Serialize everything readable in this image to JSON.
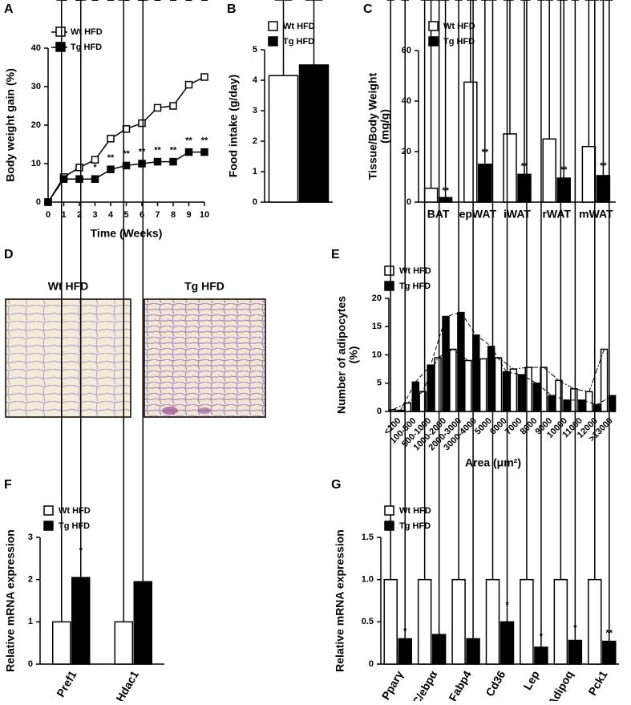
{
  "chart_data": [
    {
      "type": "line",
      "panel": "A",
      "xlabel": "Time (Weeks)",
      "ylabel": [
        "Body weight gain (%)"
      ],
      "x": [
        0,
        1,
        2,
        3,
        4,
        5,
        6,
        7,
        8,
        9,
        10
      ],
      "xlim": [
        0,
        10
      ],
      "xticks": [
        0,
        1,
        2,
        3,
        4,
        5,
        6,
        7,
        8,
        9,
        10
      ],
      "ylim": [
        0,
        40
      ],
      "yticks": [
        0,
        10,
        20,
        30,
        40
      ],
      "series": [
        {
          "name": "Wt HFD",
          "color": "#ffffff",
          "values": [
            0,
            6.5,
            9,
            11,
            16.5,
            19,
            20.5,
            24.5,
            25,
            30.5,
            32.5
          ],
          "errors": [
            0,
            1,
            1,
            1,
            2,
            1.5,
            2,
            3,
            3.5,
            4,
            4
          ]
        },
        {
          "name": "Tg HFD",
          "color": "#000000",
          "values": [
            0,
            6,
            6,
            6,
            8.5,
            9.5,
            10,
            10.5,
            10.5,
            13,
            13
          ],
          "errors": [
            0,
            1.5,
            1.5,
            1.5,
            1.5,
            1.5,
            1.5,
            1.5,
            1.5,
            1.5,
            1.5
          ],
          "significance": [
            null,
            null,
            null,
            "*",
            "**",
            "**",
            "**",
            "**",
            "**",
            "**",
            "**"
          ]
        }
      ]
    },
    {
      "type": "bar",
      "panel": "B",
      "ylabel": [
        "Food intake (g/day)"
      ],
      "categories": [
        null
      ],
      "ylim": [
        0,
        5
      ],
      "yticks": [
        0,
        1,
        2,
        3,
        4,
        5
      ],
      "series": [
        {
          "name": "Wt HFD",
          "color": "#ffffff",
          "values": [
            4.15
          ],
          "errors": [
            0.2
          ]
        },
        {
          "name": "Tg HFD",
          "color": "#000000",
          "values": [
            4.5
          ],
          "errors": [
            0.25
          ]
        }
      ]
    },
    {
      "type": "bar",
      "panel": "C",
      "ylabel": [
        "Tissue/Body Weight",
        "(mg/g)"
      ],
      "categories": [
        "BAT",
        "epWAT",
        "iWAT",
        "rWAT",
        "mWAT"
      ],
      "ylim": [
        0,
        60
      ],
      "yticks": [
        0,
        20,
        40,
        60
      ],
      "series": [
        {
          "name": "Wt HFD",
          "color": "#ffffff",
          "values": [
            5.5,
            47.5,
            27,
            25,
            22
          ],
          "errors": [
            0.7,
            5.5,
            2.5,
            3,
            5
          ]
        },
        {
          "name": "Tg HFD",
          "color": "#000000",
          "values": [
            1.8,
            15,
            11,
            9.5,
            10.5
          ],
          "errors": [
            0.4,
            2.5,
            0.8,
            1,
            1.5
          ],
          "significance": [
            "**",
            "**",
            "**",
            "**",
            "**"
          ]
        }
      ]
    },
    {
      "type": "micrograph",
      "panel": "D",
      "titles": [
        "Wt HFD",
        "Tg HFD"
      ]
    },
    {
      "type": "bar",
      "panel": "E",
      "trend": true,
      "xlabel": "Area (μm²)",
      "ylabel": [
        "Number of adipocytes",
        "(%)"
      ],
      "categories": [
        "<100",
        "100-500",
        "500-1000",
        "1000-2000",
        "2000-3000",
        "3000-4000",
        "5000",
        "6000",
        "7000",
        "8000",
        "9000",
        "10000",
        "11000",
        "12000",
        ">13000"
      ],
      "ylim": [
        0,
        20
      ],
      "yticks": [
        0,
        5,
        10,
        15,
        20
      ],
      "series": [
        {
          "name": "Wt HFD",
          "color": "#ffffff",
          "values": [
            0.3,
            1.5,
            3.5,
            9.5,
            11,
            9,
            9.3,
            9.5,
            7.5,
            7.8,
            7.8,
            5.5,
            4,
            3.5,
            11
          ]
        },
        {
          "name": "Tg HFD",
          "color": "#000000",
          "values": [
            0.2,
            5.2,
            8.2,
            16.8,
            17.5,
            13.5,
            11.5,
            7,
            6.5,
            5,
            2.8,
            2,
            2,
            1.2,
            2.8
          ]
        }
      ]
    },
    {
      "type": "bar",
      "panel": "F",
      "ylabel": [
        "Relative mRNA expression"
      ],
      "categories": [
        "Pref1",
        "Hdac1"
      ],
      "ylim": [
        0,
        3
      ],
      "yticks": [
        0,
        1,
        2,
        3
      ],
      "series": [
        {
          "name": "Wt HFD",
          "color": "#ffffff",
          "values": [
            1,
            1
          ],
          "errors": [
            0.07,
            0.2
          ]
        },
        {
          "name": "Tg HFD",
          "color": "#000000",
          "values": [
            2.05,
            1.95
          ],
          "errors": [
            0.5,
            0.02
          ],
          "significance": [
            "*",
            null
          ]
        }
      ]
    },
    {
      "type": "bar",
      "panel": "G",
      "ylabel": [
        "Relative mRNA expression"
      ],
      "categories": [
        "Pparγ",
        "C/ebpα",
        "Fabp4",
        "Cd36",
        "Lep",
        "Adipoq",
        "Pck1"
      ],
      "ylim": [
        0,
        1.5
      ],
      "yticks": [
        0,
        0.5,
        {
          "value": 1,
          "label": "1.0"
        },
        1.5
      ],
      "series": [
        {
          "name": "Wt HFD",
          "color": "#ffffff",
          "values": [
            1,
            1,
            1,
            1,
            1,
            1,
            1
          ],
          "errors": [
            0.13,
            0.17,
            0.17,
            0.08,
            0.1,
            0.19,
            0.05
          ]
        },
        {
          "name": "Tg HFD",
          "color": "#000000",
          "values": [
            0.3,
            0.35,
            0.3,
            0.5,
            0.2,
            0.28,
            0.27
          ],
          "errors": [
            0.02,
            0.06,
            0.07,
            0.13,
            0.06,
            0.08,
            0.03
          ],
          "significance": [
            "*",
            null,
            null,
            "*",
            "*",
            "*",
            "**"
          ]
        }
      ]
    }
  ]
}
